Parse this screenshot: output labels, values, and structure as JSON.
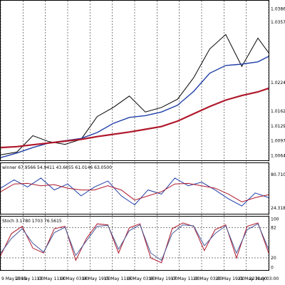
{
  "chart_data": [
    {
      "type": "line",
      "panel": "price",
      "ylim": [
        1.0054,
        1.0404
      ],
      "y_ticks": [
        "1.03860",
        "1.03570",
        "1.02240",
        "1.01620",
        "1.01290",
        "1.00970",
        "1.00640"
      ],
      "y_tick_values": [
        1.0386,
        1.0357,
        1.0224,
        1.0162,
        1.0129,
        1.0097,
        1.0064
      ],
      "x": [
        0,
        6,
        12,
        18,
        24,
        30,
        36,
        42,
        48,
        54,
        60,
        66,
        72,
        78,
        84,
        90,
        96,
        100
      ],
      "series": [
        {
          "kind": "price",
          "color": "#000000",
          "values": [
            1.0066,
            1.0072,
            1.0108,
            1.0095,
            1.0089,
            1.01,
            1.015,
            1.017,
            1.0195,
            1.016,
            1.017,
            1.0188,
            1.0235,
            1.0298,
            1.033,
            1.026,
            1.0322,
            1.029
          ]
        },
        {
          "kind": "ma-fast",
          "color": "#1f3fa8",
          "values": [
            1.006,
            1.007,
            1.0082,
            1.0092,
            1.0097,
            1.0102,
            1.0115,
            1.0135,
            1.0148,
            1.0152,
            1.016,
            1.0175,
            1.0205,
            1.0245,
            1.0262,
            1.0265,
            1.027,
            1.0282
          ]
        },
        {
          "kind": "ma-slow",
          "color": "#b0182b",
          "values": [
            1.0082,
            1.0084,
            1.0088,
            1.0092,
            1.0096,
            1.01,
            1.0106,
            1.0111,
            1.0116,
            1.0122,
            1.0128,
            1.014,
            1.0156,
            1.0172,
            1.0186,
            1.0196,
            1.0204,
            1.0212
          ]
        }
      ]
    },
    {
      "type": "line",
      "panel": "winner",
      "label": "winner 67.9566 54.9411 43.6655 61.0146 63.0500",
      "ylim": [
        15,
        100
      ],
      "y_ticks": [
        "80.7105",
        "24.3187"
      ],
      "y_tick_values": [
        80.7105,
        24.3187
      ],
      "x": [
        0,
        5,
        10,
        15,
        20,
        25,
        30,
        35,
        40,
        45,
        50,
        55,
        60,
        65,
        70,
        75,
        80,
        85,
        90,
        95,
        100
      ],
      "series": [
        {
          "kind": "fast",
          "color": "#1f3fa8",
          "values": [
            58,
            72,
            60,
            75,
            55,
            65,
            45,
            60,
            70,
            45,
            30,
            55,
            48,
            75,
            62,
            68,
            55,
            40,
            28,
            50,
            42
          ]
        },
        {
          "kind": "slow",
          "color": "#b0182b",
          "values": [
            52,
            65,
            66,
            62,
            64,
            58,
            55,
            55,
            62,
            55,
            38,
            45,
            52,
            65,
            66,
            62,
            58,
            48,
            35,
            42,
            47
          ]
        }
      ]
    },
    {
      "type": "line",
      "panel": "stoch",
      "label": "Stoch 3.1780 1703 76.5615",
      "ylim": [
        -5,
        105
      ],
      "y_ticks": [
        "100",
        "82",
        "20",
        "0"
      ],
      "y_tick_values": [
        100,
        82,
        20,
        0
      ],
      "x": [
        0,
        4,
        8,
        12,
        16,
        20,
        24,
        28,
        32,
        36,
        40,
        44,
        48,
        52,
        56,
        60,
        64,
        68,
        72,
        76,
        80,
        84,
        88,
        92,
        96,
        100
      ],
      "series": [
        {
          "kind": "main",
          "color": "#b0182b",
          "values": [
            25,
            70,
            85,
            40,
            30,
            80,
            85,
            15,
            60,
            90,
            88,
            30,
            82,
            90,
            20,
            10,
            80,
            92,
            85,
            35,
            78,
            88,
            20,
            85,
            92,
            30
          ]
        },
        {
          "kind": "signal",
          "color": "#4a5a9a",
          "values": [
            30,
            60,
            80,
            50,
            32,
            72,
            83,
            25,
            55,
            85,
            87,
            38,
            76,
            88,
            30,
            15,
            70,
            88,
            86,
            45,
            70,
            86,
            30,
            78,
            90,
            38
          ]
        }
      ]
    }
  ],
  "x_axis": {
    "labels": [
      "9 May 2013",
      "10 May 11:00",
      "13 May 11:00",
      "14 May 03:00",
      "14 May 19:00",
      "15 May 11:00",
      "16 May 03:00",
      "16 May 19:00",
      "17 May 11:00",
      "20 May 03:00",
      "20 May 19:00",
      "21 May 11:00",
      "22 May 03:00"
    ]
  }
}
